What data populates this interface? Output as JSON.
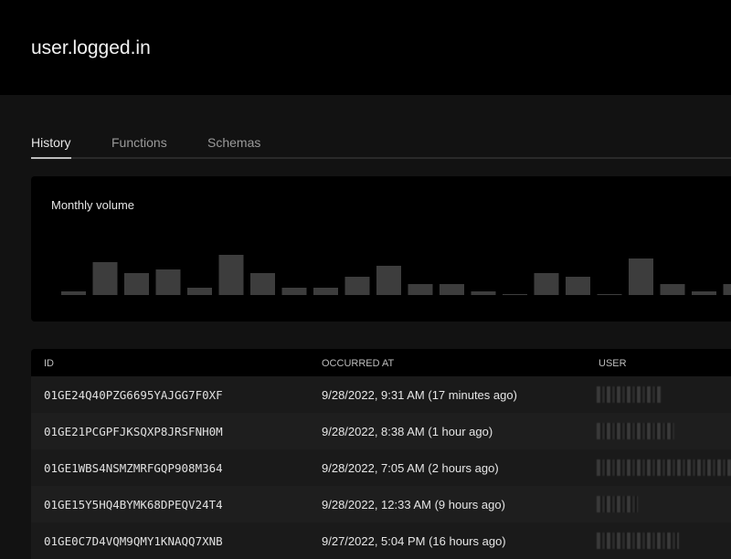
{
  "header": {
    "title": "user.logged.in"
  },
  "tabs": [
    {
      "label": "History",
      "active": true
    },
    {
      "label": "Functions",
      "active": false
    },
    {
      "label": "Schemas",
      "active": false
    }
  ],
  "chart_data": {
    "type": "bar",
    "title": "Monthly volume",
    "values": [
      1,
      9,
      6,
      7,
      2,
      11,
      6,
      2,
      2,
      5,
      8,
      3,
      3,
      1,
      0,
      6,
      5,
      0,
      10,
      3,
      1,
      3
    ],
    "bar_color": "#3d3d3d",
    "grid": false
  },
  "table": {
    "columns": [
      "ID",
      "OCCURRED AT",
      "USER"
    ],
    "rows": [
      {
        "id": "01GE24Q40PZG6695YAJGG7F0XF",
        "occurred_at": "9/28/2022, 9:31 AM (17 minutes ago)"
      },
      {
        "id": "01GE21PCGPFJKSQXP8JRSFNH0M",
        "occurred_at": "9/28/2022, 8:38 AM (1 hour ago)"
      },
      {
        "id": "01GE1WBS4NSMZMRFGQP908M364",
        "occurred_at": "9/28/2022, 7:05 AM (2 hours ago)"
      },
      {
        "id": "01GE15Y5HQ4BYMK68DPEQV24T4",
        "occurred_at": "9/28/2022, 12:33 AM (9 hours ago)"
      },
      {
        "id": "01GE0C7D4VQM9QMY1KNAQQ7XNB",
        "occurred_at": "9/27/2022, 5:04 PM (16 hours ago)"
      }
    ]
  }
}
